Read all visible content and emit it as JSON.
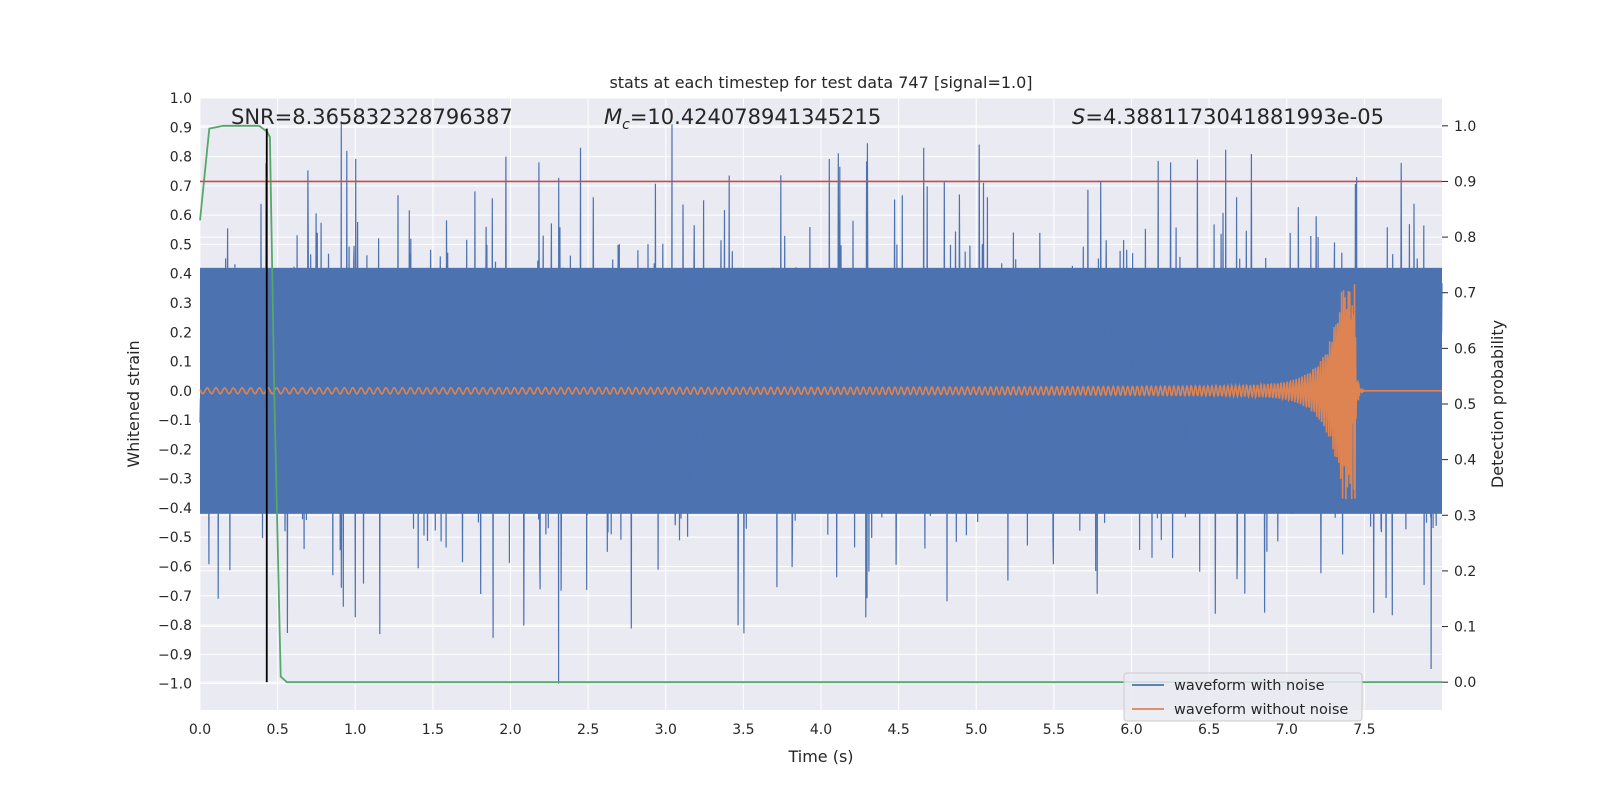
{
  "chart_data": {
    "type": "line",
    "title": "stats at each timestep for test data 747 [signal=1.0]",
    "xlabel": "Time (s)",
    "ylabel_left": "Whitened strain",
    "ylabel_right": "Detection probability",
    "xlim": [
      0.0,
      8.0
    ],
    "ylim_left": [
      -1.09,
      1.0
    ],
    "ylim_right": [
      -0.05,
      1.05
    ],
    "x_ticks": [
      "0.0",
      "0.5",
      "1.0",
      "1.5",
      "2.0",
      "2.5",
      "3.0",
      "3.5",
      "4.0",
      "4.5",
      "5.0",
      "5.5",
      "6.0",
      "6.5",
      "7.0",
      "7.5"
    ],
    "y_ticks_left": [
      "1.0",
      "0.9",
      "0.8",
      "0.7",
      "0.6",
      "0.5",
      "0.4",
      "0.3",
      "0.2",
      "0.1",
      "0.0",
      "-0.1",
      "-0.2",
      "-0.3",
      "-0.4",
      "-0.5",
      "-0.6",
      "-0.7",
      "-0.8",
      "-0.9",
      "-1.0"
    ],
    "y_ticks_right": [
      "1.0",
      "0.9",
      "0.8",
      "0.7",
      "0.6",
      "0.5",
      "0.4",
      "0.3",
      "0.2",
      "0.1",
      "0.0"
    ],
    "grid": true,
    "legend_position": "lower-right",
    "annotations": {
      "snr": "SNR=8.365832328796387",
      "mc_symbol": "M",
      "mc_sub": "c",
      "mc_value": "=10.424078941345215",
      "s_symbol": "S",
      "s_value": "=4.3881173041881993e-05"
    },
    "series": [
      {
        "name": "waveform with noise",
        "color": "#4c72b0",
        "axis": "left",
        "description_range": [
          -1.0,
          1.0
        ],
        "typical_band": [
          -0.42,
          0.42
        ],
        "notable_peaks": [
          {
            "x": 0.91,
            "y": 0.92
          },
          {
            "x": 3.04,
            "y": 0.91
          },
          {
            "x": 2.31,
            "y": -1.0
          },
          {
            "x": 7.93,
            "y": -0.95
          },
          {
            "x": 7.45,
            "y": 0.73
          }
        ]
      },
      {
        "name": "waveform without noise",
        "color": "#dd8452",
        "axis": "left",
        "chirp_start_amplitude": 0.01,
        "merger_time": 7.44,
        "merger_peak": 0.37,
        "merger_trough": -0.29
      },
      {
        "name": "Detection probability",
        "color": "#55a868",
        "axis": "right",
        "x": [
          0.0,
          0.06,
          0.15,
          0.3,
          0.38,
          0.43,
          0.45,
          0.48,
          0.52,
          0.56,
          0.6,
          8.0
        ],
        "y": [
          0.83,
          0.995,
          1.0,
          1.0,
          1.0,
          0.99,
          0.98,
          0.5,
          0.01,
          0.0,
          0.0,
          0.0
        ]
      }
    ],
    "threshold_line": {
      "axis": "right",
      "y": 0.9,
      "color": "#c44e52"
    },
    "marker_line": {
      "x": 0.43,
      "color": "#000000"
    }
  }
}
